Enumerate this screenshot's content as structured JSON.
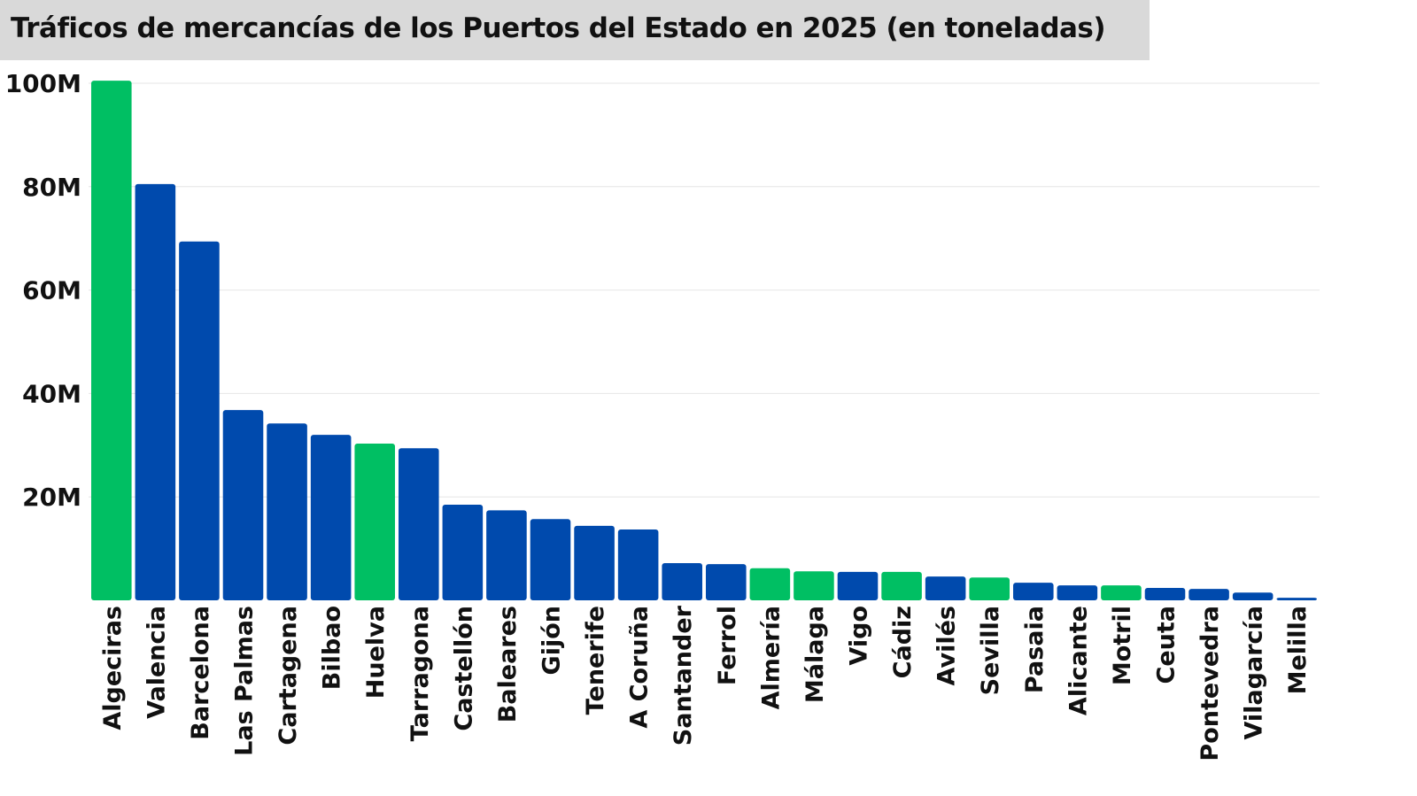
{
  "chart_data": {
    "type": "bar",
    "title": "Tráficos de mercancías de los Puertos del Estado en 2025 (en toneladas)",
    "xlabel": "",
    "ylabel": "",
    "ylim": [
      0,
      100000000
    ],
    "yticks": [
      20000000,
      40000000,
      60000000,
      80000000,
      100000000
    ],
    "ytick_labels": [
      "20M",
      "40M",
      "60M",
      "80M",
      "100M"
    ],
    "grid": true,
    "colors": {
      "highlight": "#00bf63",
      "default": "#004aad"
    },
    "categories": [
      "Algeciras",
      "Valencia",
      "Barcelona",
      "Las Palmas",
      "Cartagena",
      "Bilbao",
      "Huelva",
      "Tarragona",
      "Castellón",
      "Baleares",
      "Gijón",
      "Tenerife",
      "A Coruña",
      "Santander",
      "Ferrol",
      "Almería",
      "Málaga",
      "Vigo",
      "Cádiz",
      "Avilés",
      "Sevilla",
      "Pasaia",
      "Alicante",
      "Motril",
      "Ceuta",
      "Pontevedra",
      "Vilagarcía",
      "Melilla"
    ],
    "values": [
      100500000,
      80500000,
      69400000,
      36800000,
      34200000,
      32000000,
      30300000,
      29400000,
      18500000,
      17400000,
      15700000,
      14400000,
      13700000,
      7200000,
      7000000,
      6200000,
      5600000,
      5500000,
      5500000,
      4600000,
      4400000,
      3400000,
      2900000,
      2900000,
      2400000,
      2200000,
      1500000,
      500000
    ],
    "highlighted": [
      true,
      false,
      false,
      false,
      false,
      false,
      true,
      false,
      false,
      false,
      false,
      false,
      false,
      false,
      false,
      true,
      true,
      false,
      true,
      false,
      true,
      false,
      false,
      true,
      false,
      false,
      false,
      false
    ]
  }
}
